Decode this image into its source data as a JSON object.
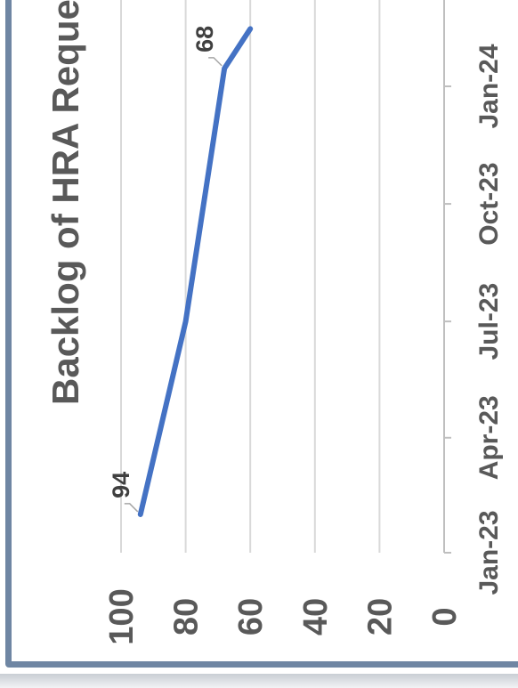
{
  "chart_data": {
    "type": "line",
    "title": "Backlog of HRA Reques",
    "xlabel": "",
    "ylabel": "",
    "ylim": [
      0,
      100
    ],
    "y_ticks": [
      "0",
      "20",
      "40",
      "60",
      "80",
      "100"
    ],
    "x_ticks": [
      "Jan-23",
      "Apr-23",
      "Jul-23",
      "Oct-23",
      "Jan-24"
    ],
    "x_tick_dates": [
      "2023-01-01",
      "2023-04-01",
      "2023-07-01",
      "2023-10-01",
      "2024-01-01"
    ],
    "series": [
      {
        "name": "",
        "x": [
          "2023-01-31",
          "2023-07-01",
          "2024-01-15",
          "2024-02-15"
        ],
        "values": [
          94,
          80,
          68,
          60
        ],
        "labels": [
          "94",
          "",
          "68",
          ""
        ],
        "color": "#4472c4"
      }
    ],
    "grid": true,
    "legend": "none",
    "rotation": "chart rotated 90° counter-clockwise"
  }
}
